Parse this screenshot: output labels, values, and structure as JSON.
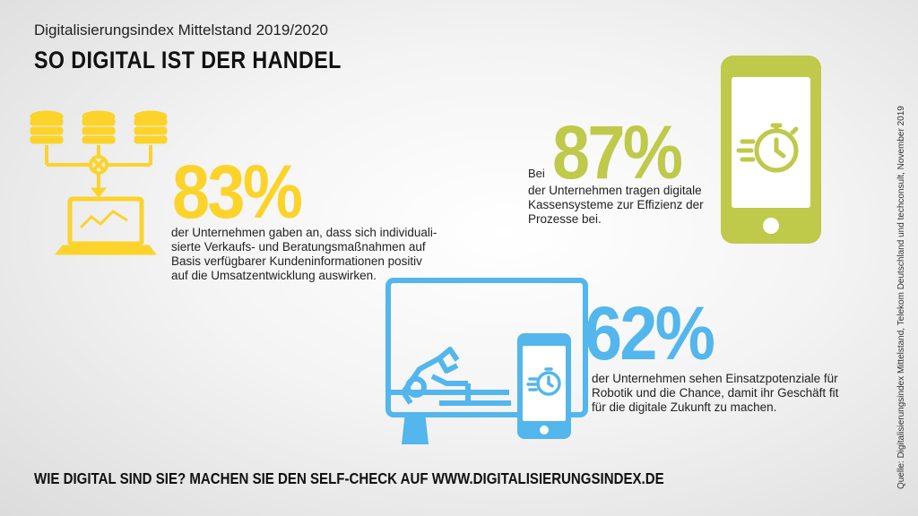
{
  "header": {
    "subtitle": "Digitalisierungsindex Mittelstand 2019/2020",
    "title": "SO DIGITAL IST DER HANDEL"
  },
  "stats": [
    {
      "percent": "83%",
      "text": "der Unternehmen gaben an, dass sich individuali-sierte Verkaufs- und Beratungsmaßnahmen auf Basis verfügbarer Kundeninformationen positiv auf die Umsatzentwicklung auswirken.",
      "color": "#fcd32a",
      "icon": "database-laptop-icon"
    },
    {
      "prefix": "Bei",
      "percent": "87%",
      "text": "der Unternehmen tragen digitale Kassensysteme zur Effizienz der Prozesse bei.",
      "color": "#bfc94a",
      "icon": "smartphone-stopwatch-icon"
    },
    {
      "percent": "62%",
      "text": "der Unternehmen sehen Einsatzpotenziale für Robotik und die Chance, damit ihr Geschäft fit für die digitale Zukunft zu machen.",
      "color": "#53b6ec",
      "icon": "monitor-robot-arm-smartphone-icon"
    }
  ],
  "footer": {
    "cta": "WIE DIGITAL SIND SIE? MACHEN SIE DEN SELF-CHECK AUF WWW.DIGITALISIERUNGSINDEX.DE"
  },
  "source": "Quelle: Digitalisierungsindex Mittelstand, Telekom Deutschland und techconsult, November 2019"
}
